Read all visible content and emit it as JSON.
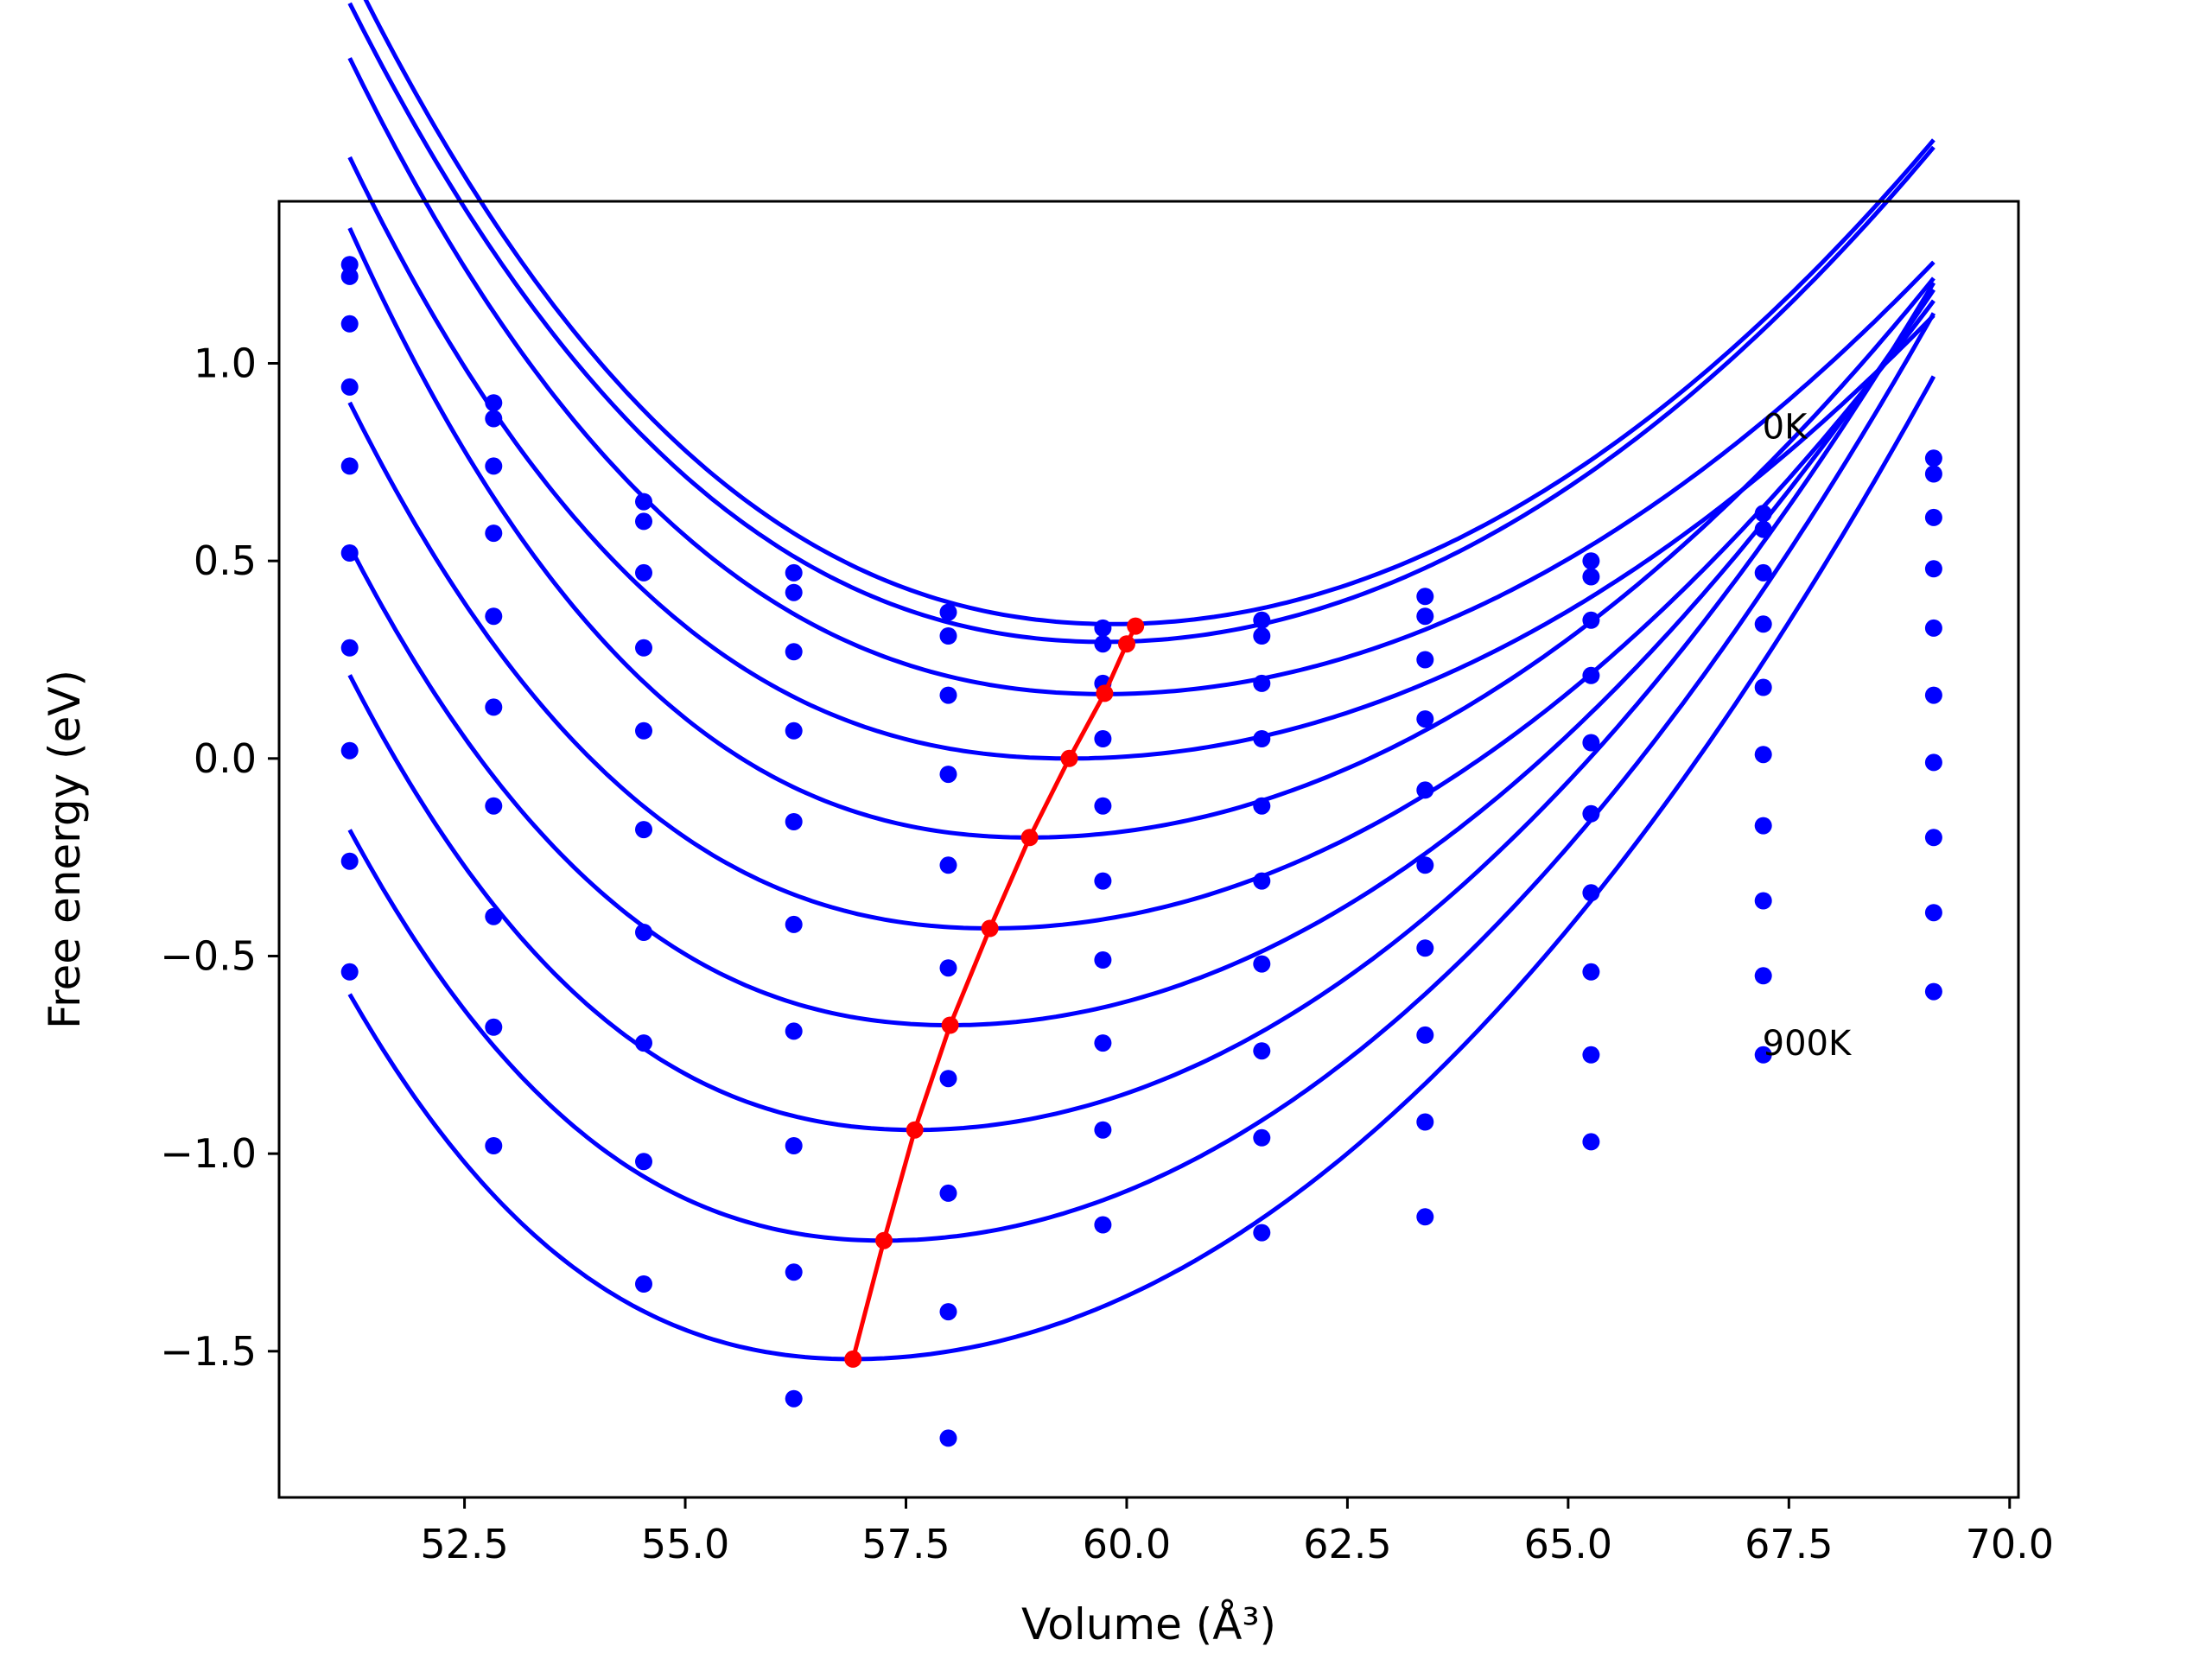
{
  "chart_data": {
    "type": "line",
    "xlabel": "Volume (Å³)",
    "ylabel": "Free energy (eV)",
    "xlim": [
      50.4,
      70.1
    ],
    "ylim": [
      -1.87,
      1.41
    ],
    "x_ticks": [
      "52.5",
      "55.0",
      "57.5",
      "60.0",
      "62.5",
      "65.0",
      "67.5",
      "70.0"
    ],
    "y_ticks": [
      "−1.5",
      "−1.0",
      "−0.5",
      "0.0",
      "0.5",
      "1.0"
    ],
    "grid": false,
    "legend": "none",
    "annotations": [
      {
        "text": "0K",
        "x": 67.2,
        "y": 0.81
      },
      {
        "text": "900K",
        "x": 67.2,
        "y": -0.75
      }
    ],
    "colors": {
      "isotherms": "#0000ff",
      "minimum_path": "#ff0000",
      "axes": "#000000",
      "background": "#ffffff"
    },
    "data_x": [
      51.2,
      52.83,
      54.53,
      56.23,
      57.98,
      59.73,
      61.53,
      63.38,
      65.26,
      67.21,
      69.14
    ],
    "series": [
      {
        "values": [
          1.25,
          0.9,
          0.65,
          0.47,
          0.37,
          0.33,
          0.35,
          0.41,
          0.5,
          0.62,
          0.76
        ]
      },
      {
        "values": [
          1.22,
          0.86,
          0.6,
          0.42,
          0.31,
          0.29,
          0.31,
          0.36,
          0.46,
          0.58,
          0.72
        ]
      },
      {
        "values": [
          1.1,
          0.74,
          0.47,
          0.27,
          0.16,
          0.19,
          0.19,
          0.25,
          0.35,
          0.47,
          0.61
        ]
      },
      {
        "values": [
          0.94,
          0.57,
          0.28,
          0.07,
          -0.04,
          0.05,
          0.05,
          0.1,
          0.21,
          0.34,
          0.48
        ]
      },
      {
        "values": [
          0.74,
          0.36,
          0.07,
          -0.16,
          -0.27,
          -0.12,
          -0.12,
          -0.08,
          0.04,
          0.18,
          0.33
        ]
      },
      {
        "values": [
          0.52,
          0.13,
          -0.18,
          -0.42,
          -0.53,
          -0.31,
          -0.31,
          -0.27,
          -0.14,
          0.01,
          0.16
        ]
      },
      {
        "values": [
          0.28,
          -0.12,
          -0.44,
          -0.69,
          -0.81,
          -0.51,
          -0.52,
          -0.48,
          -0.34,
          -0.17,
          -0.01
        ]
      },
      {
        "values": [
          0.02,
          -0.4,
          -0.72,
          -0.98,
          -1.1,
          -0.72,
          -0.74,
          -0.7,
          -0.54,
          -0.36,
          -0.2
        ]
      },
      {
        "values": [
          -0.26,
          -0.68,
          -1.02,
          -1.3,
          -1.4,
          -0.94,
          -0.96,
          -0.92,
          -0.75,
          -0.55,
          -0.39
        ]
      },
      {
        "values": [
          -0.54,
          -0.98,
          -1.33,
          -1.62,
          -1.72,
          -1.18,
          -1.2,
          -1.16,
          -0.97,
          -0.75,
          -0.59
        ]
      }
    ],
    "fit_curves": [
      {
        "min_x": 59.85,
        "min_y": 0.34,
        "a": 0.0142,
        "b": 0.0037,
        "x_start": 51.2
      },
      {
        "min_x": 59.75,
        "min_y": 0.295,
        "a": 0.0142,
        "b": 0.0037,
        "x_start": 51.2
      },
      {
        "min_x": 59.75,
        "min_y": 0.163,
        "a": 0.0124,
        "b": 0.0045,
        "x_start": 51.2
      },
      {
        "min_x": 59.35,
        "min_y": 0.0,
        "a": 0.0117,
        "b": 0.0055,
        "x_start": 51.2
      },
      {
        "min_x": 58.9,
        "min_y": -0.2,
        "a": 0.0135,
        "b": 0.0065,
        "x_start": 51.2
      },
      {
        "min_x": 58.45,
        "min_y": -0.43,
        "a": 0.0139,
        "b": 0.0063,
        "x_start": 51.2
      },
      {
        "min_x": 58.0,
        "min_y": -0.675,
        "a": 0.015,
        "b": 0.0066,
        "x_start": 51.2
      },
      {
        "min_x": 57.6,
        "min_y": -0.94,
        "a": 0.0161,
        "b": 0.0075,
        "x_start": 51.2
      },
      {
        "min_x": 57.25,
        "min_y": -1.22,
        "a": 0.0166,
        "b": 0.0078,
        "x_start": 51.2
      },
      {
        "min_x": 56.9,
        "min_y": -1.52,
        "a": 0.0166,
        "b": 0.0083,
        "x_start": 51.2
      }
    ],
    "minimum_path": {
      "x": [
        60.1,
        60.0,
        59.75,
        59.35,
        58.9,
        58.45,
        58.0,
        57.6,
        57.25,
        56.9
      ],
      "y": [
        0.335,
        0.29,
        0.165,
        0.0,
        -0.2,
        -0.43,
        -0.675,
        -0.94,
        -1.22,
        -1.52
      ]
    }
  }
}
